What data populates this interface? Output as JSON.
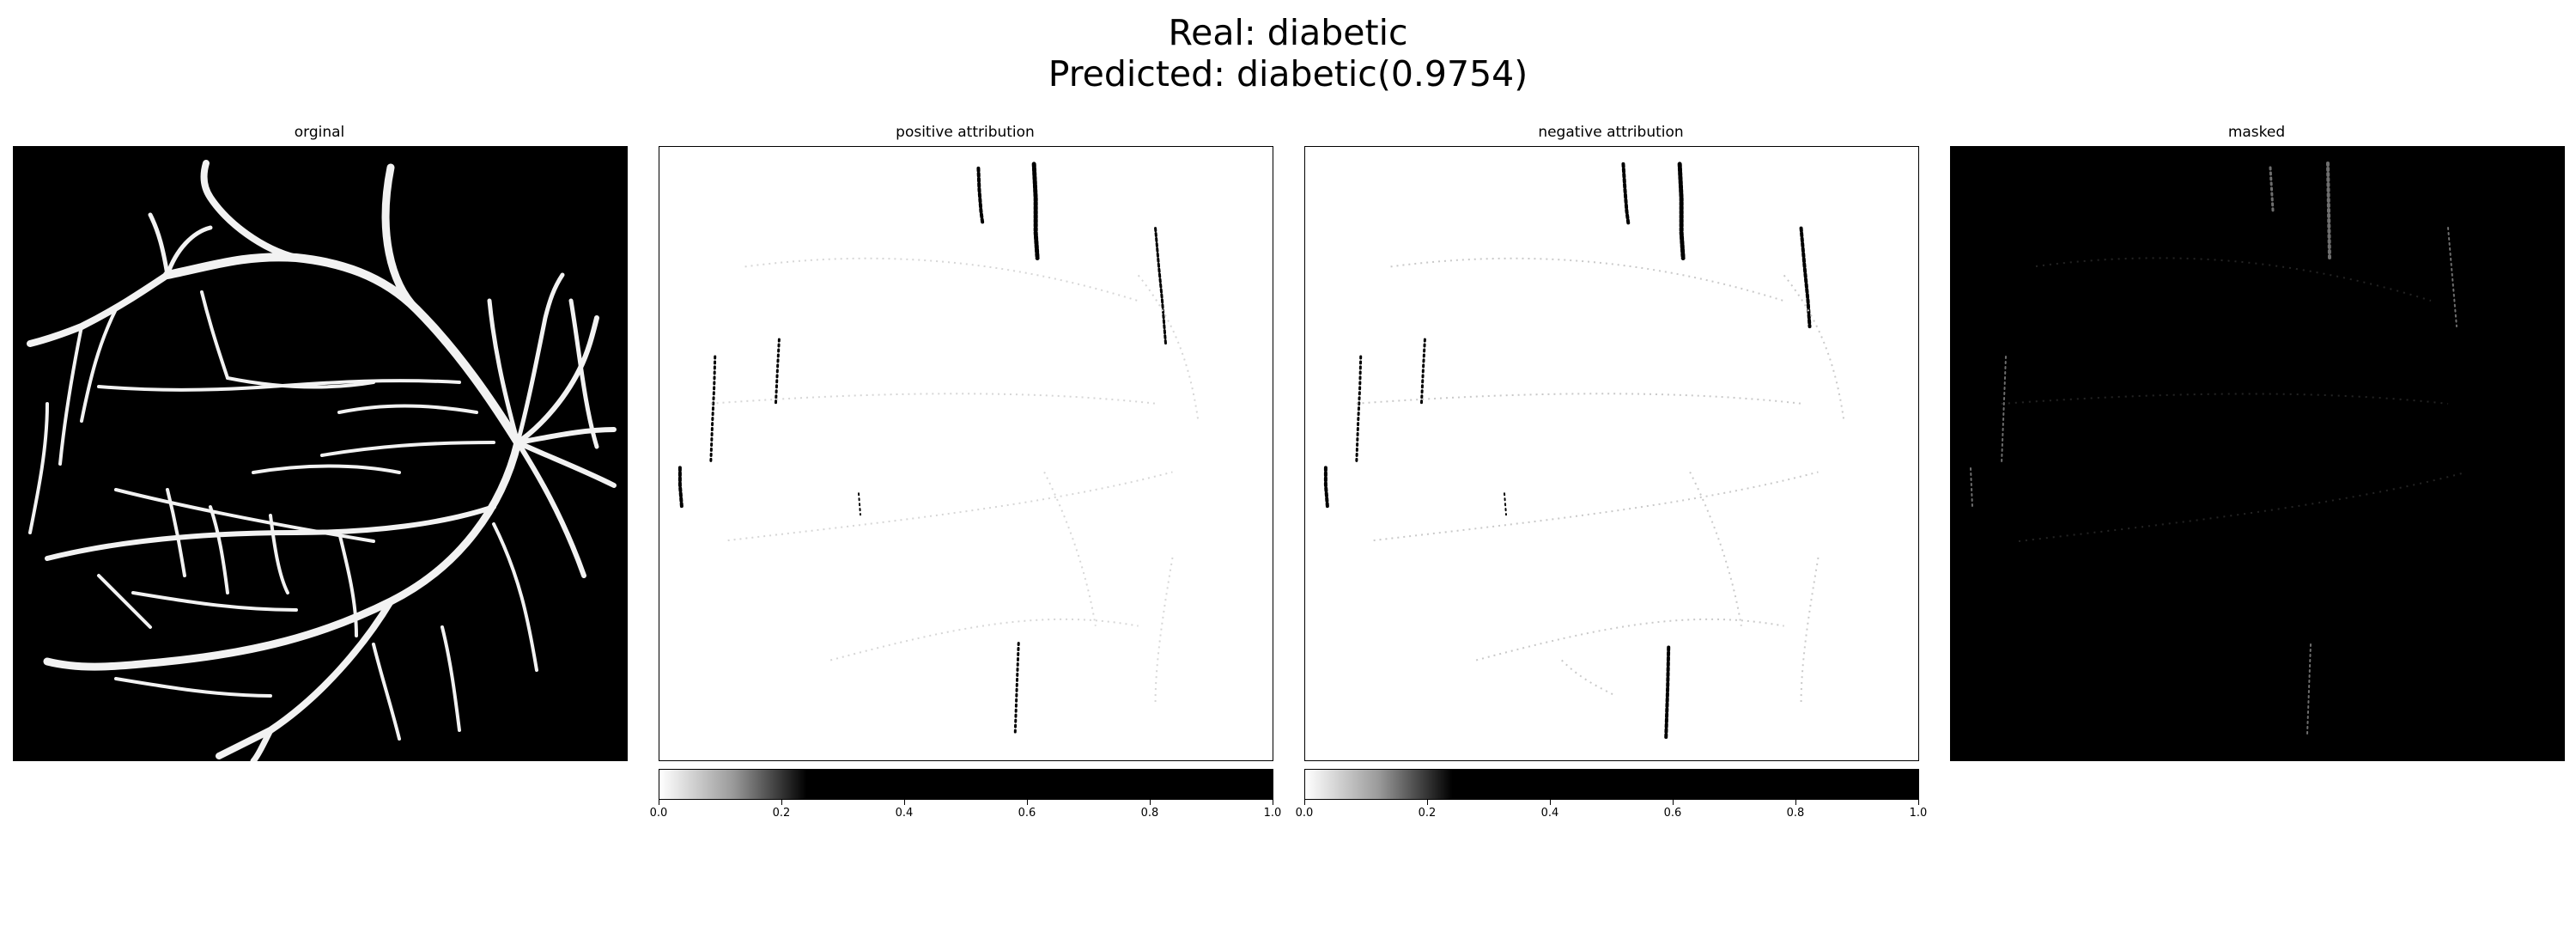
{
  "figure": {
    "title_line1": "Real: diabetic",
    "title_line2": "Predicted: diabetic(0.9754)"
  },
  "panels": [
    {
      "title": "orginal"
    },
    {
      "title": "positive attribution"
    },
    {
      "title": "negative attribution"
    },
    {
      "title": "masked"
    }
  ],
  "colorbar": {
    "ticks": [
      "0.0",
      "0.2",
      "0.4",
      "0.6",
      "0.8",
      "1.0"
    ],
    "colormap": "gray_r",
    "range": [
      0,
      1
    ]
  },
  "colors": {
    "background": "#ffffff",
    "vessel": "#ffffff",
    "dark_bg": "#000000"
  }
}
